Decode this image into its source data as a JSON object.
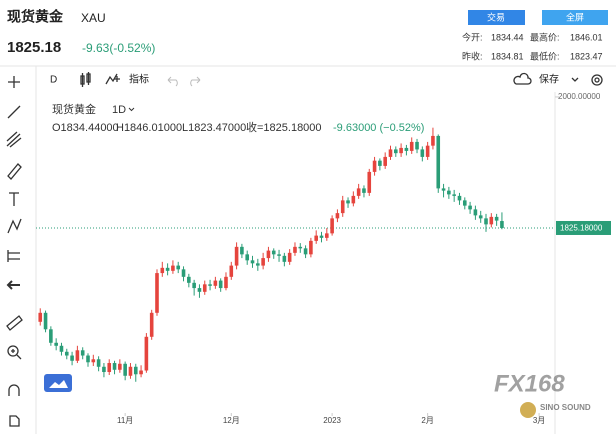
{
  "header": {
    "name": "现货黄金",
    "symbol": "XAU",
    "price": "1825.18",
    "change": "-9.63(-0.52%)",
    "buttons": [
      "交易",
      "全屏"
    ],
    "stats": [
      [
        "今开:",
        "1834.44",
        "最高价:",
        "1846.01"
      ],
      [
        "昨收:",
        "1834.81",
        "最低价:",
        "1823.47"
      ]
    ]
  },
  "toolbar": {
    "interval": "D",
    "indicators": "指标",
    "save": "保存"
  },
  "watermark": {
    "brand": "FX168",
    "badge": "SINO SOUND"
  },
  "chart_data": {
    "type": "candlestick",
    "title": "现货黄金",
    "interval": "1D",
    "legend": [
      "O1834.44000",
      "H1846.01000",
      "L1823.47000",
      "收=1825.18000",
      "-9.63000 (−0.52%)"
    ],
    "up_color": "#e5443d",
    "down_color": "#2a9d77",
    "xlim": [
      -0.8,
      97
    ],
    "xticks": [
      {
        "value": 16,
        "label": "11月"
      },
      {
        "value": 36,
        "label": "12月"
      },
      {
        "value": 55,
        "label": "2023"
      },
      {
        "value": 73,
        "label": "2月"
      },
      {
        "value": 94,
        "label": "3月"
      }
    ],
    "ylim": [
      1589,
      2006.6
    ],
    "yticks": [
      {
        "value": 2000,
        "label": "2000.00000"
      }
    ],
    "last_price": {
      "value": 1825.18,
      "label": "1825.18000"
    },
    "open": [
      1700,
      1712,
      1690,
      1672,
      1668,
      1660,
      1655,
      1648,
      1662,
      1655,
      1646,
      1650,
      1640,
      1633,
      1645,
      1636,
      1644,
      1628,
      1640,
      1630,
      1635,
      1680,
      1712,
      1765,
      1772,
      1768,
      1775,
      1770,
      1760,
      1752,
      1745,
      1740,
      1750,
      1748,
      1755,
      1745,
      1760,
      1775,
      1800,
      1790,
      1782,
      1778,
      1775,
      1785,
      1795,
      1790,
      1788,
      1780,
      1792,
      1800,
      1798,
      1790,
      1808,
      1815,
      1812,
      1818,
      1838,
      1845,
      1862,
      1858,
      1868,
      1878,
      1872,
      1900,
      1915,
      1908,
      1920,
      1930,
      1925,
      1932,
      1928,
      1940,
      1930,
      1920,
      1935,
      1948,
      1878,
      1875,
      1870,
      1868,
      1862,
      1855,
      1850,
      1842,
      1838,
      1830,
      1840,
      1834.44
    ],
    "high": [
      1718,
      1715,
      1694,
      1678,
      1672,
      1664,
      1660,
      1668,
      1666,
      1658,
      1656,
      1654,
      1645,
      1650,
      1648,
      1650,
      1647,
      1645,
      1644,
      1642,
      1685,
      1716,
      1770,
      1780,
      1778,
      1782,
      1780,
      1774,
      1764,
      1756,
      1750,
      1755,
      1756,
      1760,
      1758,
      1766,
      1780,
      1806,
      1804,
      1795,
      1788,
      1784,
      1792,
      1800,
      1798,
      1796,
      1792,
      1797,
      1806,
      1805,
      1802,
      1812,
      1822,
      1820,
      1825,
      1842,
      1850,
      1868,
      1866,
      1874,
      1884,
      1882,
      1904,
      1920,
      1918,
      1926,
      1935,
      1934,
      1938,
      1936,
      1946,
      1944,
      1934,
      1940,
      1959,
      1950,
      1884,
      1880,
      1876,
      1872,
      1866,
      1860,
      1855,
      1848,
      1844,
      1845,
      1844,
      1846.01
    ],
    "low": [
      1695,
      1686,
      1668,
      1662,
      1655,
      1650,
      1642,
      1645,
      1650,
      1640,
      1641,
      1634,
      1626,
      1629,
      1630,
      1632,
      1622,
      1624,
      1620,
      1626,
      1632,
      1676,
      1708,
      1760,
      1762,
      1764,
      1765,
      1754,
      1746,
      1735,
      1732,
      1736,
      1742,
      1744,
      1740,
      1742,
      1756,
      1770,
      1785,
      1776,
      1772,
      1768,
      1770,
      1780,
      1784,
      1780,
      1774,
      1776,
      1788,
      1792,
      1785,
      1786,
      1804,
      1806,
      1808,
      1815,
      1833,
      1840,
      1852,
      1854,
      1864,
      1866,
      1868,
      1895,
      1902,
      1904,
      1916,
      1920,
      1920,
      1922,
      1924,
      1925,
      1914,
      1916,
      1930,
      1872,
      1866,
      1864,
      1860,
      1856,
      1850,
      1844,
      1836,
      1832,
      1820,
      1826,
      1828,
      1823.47
    ],
    "close": [
      1712,
      1690,
      1672,
      1668,
      1660,
      1655,
      1648,
      1662,
      1655,
      1646,
      1650,
      1640,
      1633,
      1645,
      1636,
      1644,
      1628,
      1640,
      1630,
      1635,
      1680,
      1712,
      1765,
      1772,
      1768,
      1775,
      1770,
      1760,
      1752,
      1745,
      1740,
      1750,
      1748,
      1755,
      1745,
      1760,
      1775,
      1800,
      1790,
      1782,
      1778,
      1775,
      1785,
      1795,
      1790,
      1788,
      1780,
      1792,
      1800,
      1798,
      1790,
      1808,
      1815,
      1812,
      1818,
      1838,
      1845,
      1862,
      1858,
      1868,
      1878,
      1872,
      1900,
      1915,
      1908,
      1920,
      1930,
      1925,
      1932,
      1928,
      1940,
      1930,
      1920,
      1935,
      1948,
      1878,
      1875,
      1870,
      1868,
      1862,
      1855,
      1850,
      1842,
      1838,
      1830,
      1840,
      1835,
      1825.18
    ]
  }
}
